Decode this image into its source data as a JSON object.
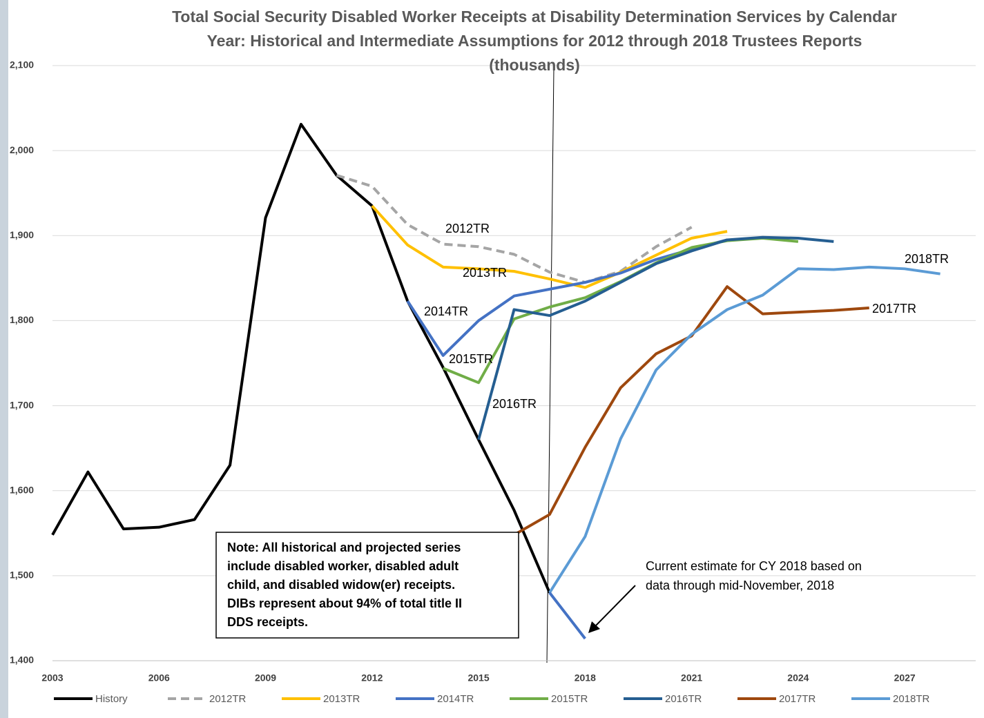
{
  "chart_data": {
    "type": "line",
    "title": [
      "Total Social Security Disabled Worker Receipts at Disability Determination Services by Calendar",
      "Year: Historical and Intermediate Assumptions for 2012 through 2018 Trustees Reports",
      "(thousands)"
    ],
    "x": [
      2003,
      2004,
      2005,
      2006,
      2007,
      2008,
      2009,
      2010,
      2011,
      2012,
      2013,
      2014,
      2015,
      2016,
      2017,
      2018,
      2019,
      2020,
      2021,
      2022,
      2023,
      2024,
      2025,
      2026,
      2027,
      2028
    ],
    "series": [
      {
        "name": "History",
        "color": "#000000",
        "values": [
          1548,
          1622,
          1555,
          1557,
          1566,
          1630,
          1921,
          2031,
          1971,
          1935,
          1823,
          1745,
          1660,
          1577,
          1480,
          null,
          null,
          null,
          null,
          null,
          null,
          null,
          null,
          null,
          null,
          null
        ]
      },
      {
        "name": "2012TR",
        "color": "#a5a5a5",
        "dash": true,
        "values": [
          null,
          null,
          null,
          null,
          null,
          null,
          null,
          null,
          1971,
          1958,
          1913,
          1890,
          1887,
          1878,
          1857,
          1845,
          1858,
          1887,
          1910,
          null,
          null,
          null,
          null,
          null,
          null,
          null
        ]
      },
      {
        "name": "2013TR",
        "color": "#ffc000",
        "values": [
          null,
          null,
          null,
          null,
          null,
          null,
          null,
          null,
          null,
          1935,
          1889,
          1863,
          1861,
          1858,
          1849,
          1839,
          1857,
          1877,
          1897,
          1905,
          null,
          null,
          null,
          null,
          null,
          null
        ]
      },
      {
        "name": "2014TR",
        "color": "#4472c4",
        "values": [
          null,
          null,
          null,
          null,
          null,
          null,
          null,
          null,
          null,
          null,
          1823,
          1759,
          1800,
          1829,
          1837,
          1845,
          1856,
          1872,
          1884,
          1895,
          null,
          null,
          null,
          null,
          null,
          null
        ]
      },
      {
        "name": "2015TR",
        "color": "#70ad47",
        "values": [
          null,
          null,
          null,
          null,
          null,
          null,
          null,
          null,
          null,
          null,
          null,
          1744,
          1727,
          1802,
          1816,
          1827,
          1846,
          1868,
          1886,
          1894,
          1897,
          1893,
          null,
          null,
          null,
          null
        ]
      },
      {
        "name": "2016TR",
        "color": "#255e91",
        "values": [
          null,
          null,
          null,
          null,
          null,
          null,
          null,
          null,
          null,
          null,
          null,
          null,
          1660,
          1813,
          1806,
          1823,
          1845,
          1867,
          1882,
          1895,
          1898,
          1897,
          1893,
          null,
          null,
          null
        ]
      },
      {
        "name": "2017TR",
        "color": "#9e480e",
        "values": [
          null,
          null,
          null,
          null,
          null,
          null,
          null,
          null,
          null,
          null,
          null,
          null,
          null,
          1548,
          1572,
          1651,
          1721,
          1761,
          1782,
          1840,
          1808,
          1810,
          1812,
          1815,
          null,
          null
        ]
      },
      {
        "name": "2018TR",
        "color": "#5b9bd5",
        "values": [
          null,
          null,
          null,
          null,
          null,
          null,
          null,
          null,
          null,
          null,
          null,
          null,
          null,
          null,
          1480,
          1546,
          1661,
          1742,
          1784,
          1813,
          1830,
          1861,
          1860,
          1863,
          1861,
          1855
        ]
      }
    ],
    "estimate": {
      "x": [
        2017,
        2018
      ],
      "values": [
        1480,
        1426
      ],
      "color": "#4472c4"
    },
    "annotation": [
      "Current estimate for CY 2018 based on",
      "data through mid-November, 2018"
    ],
    "note": [
      "Note: All historical and projected series",
      "include disabled worker, disabled adult",
      "child, and disabled widow(er) receipts.",
      "DIBs represent about 94% of total title II",
      "DDS receipts."
    ],
    "xlim": [
      2003,
      2029
    ],
    "xticks": [
      2003,
      2006,
      2009,
      2012,
      2015,
      2018,
      2021,
      2024,
      2027
    ],
    "ylim": [
      1400,
      2100
    ],
    "yticks": [
      {
        "value": 1400,
        "label": "1,400"
      },
      {
        "value": 1500,
        "label": "1,500"
      },
      {
        "value": 1600,
        "label": "1,600"
      },
      {
        "value": 1700,
        "label": "1,700"
      },
      {
        "value": 1800,
        "label": "1,800"
      },
      {
        "value": 1900,
        "label": "1,900"
      },
      {
        "value": 2000,
        "label": "2,000"
      },
      {
        "value": 2100,
        "label": "2,100"
      }
    ],
    "grid": true
  }
}
